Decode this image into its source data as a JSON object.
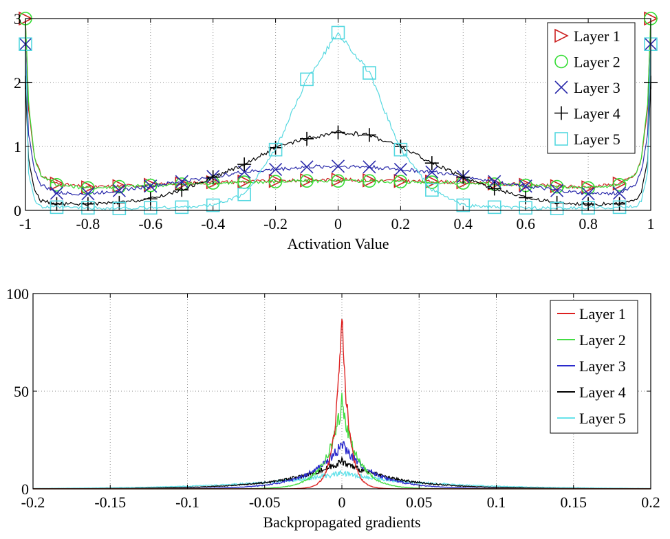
{
  "chart_data": [
    {
      "type": "line",
      "title": "",
      "xlabel": "Activation Value",
      "ylabel": "",
      "xlim": [
        -1,
        1
      ],
      "ylim": [
        0,
        3
      ],
      "grid": true,
      "legend_position": "top-right",
      "x_ticks": [
        -1,
        -0.8,
        -0.6,
        -0.4,
        -0.2,
        0,
        0.2,
        0.4,
        0.6,
        0.8,
        1
      ],
      "x_tick_labels": [
        "-1",
        "-0.8",
        "-0.6",
        "-0.4",
        "-0.2",
        "0",
        "0.2",
        "0.4",
        "0.6",
        "0.8",
        "1"
      ],
      "y_ticks": [
        0,
        1,
        2,
        3
      ],
      "y_tick_labels": [
        "0",
        "1",
        "2",
        "3"
      ],
      "x": [
        -1.0,
        -0.99,
        -0.97,
        -0.95,
        -0.9,
        -0.8,
        -0.7,
        -0.6,
        -0.5,
        -0.4,
        -0.3,
        -0.2,
        -0.1,
        0.0,
        0.1,
        0.2,
        0.3,
        0.4,
        0.5,
        0.6,
        0.7,
        0.8,
        0.9,
        0.95,
        0.97,
        0.99,
        1.0
      ],
      "series": [
        {
          "name": "Layer 1",
          "color": "#cc2020",
          "marker": "triangle-right",
          "values": [
            3.0,
            1.6,
            0.8,
            0.55,
            0.42,
            0.36,
            0.38,
            0.4,
            0.42,
            0.44,
            0.45,
            0.46,
            0.47,
            0.48,
            0.47,
            0.46,
            0.45,
            0.44,
            0.42,
            0.4,
            0.38,
            0.36,
            0.42,
            0.55,
            0.8,
            1.6,
            3.0
          ]
        },
        {
          "name": "Layer 2",
          "color": "#33dd33",
          "marker": "circle",
          "values": [
            3.0,
            1.7,
            0.8,
            0.55,
            0.4,
            0.35,
            0.37,
            0.39,
            0.41,
            0.43,
            0.44,
            0.45,
            0.46,
            0.46,
            0.46,
            0.45,
            0.44,
            0.43,
            0.41,
            0.39,
            0.37,
            0.35,
            0.4,
            0.55,
            0.8,
            1.7,
            3.0
          ]
        },
        {
          "name": "Layer 3",
          "color": "#2a2aaa",
          "marker": "x",
          "values": [
            2.6,
            1.2,
            0.6,
            0.4,
            0.27,
            0.26,
            0.31,
            0.38,
            0.45,
            0.53,
            0.6,
            0.64,
            0.68,
            0.69,
            0.68,
            0.64,
            0.6,
            0.53,
            0.45,
            0.38,
            0.31,
            0.26,
            0.27,
            0.4,
            0.6,
            1.2,
            2.6
          ]
        },
        {
          "name": "Layer 4",
          "color": "#000000",
          "marker": "plus",
          "values": [
            2.0,
            0.8,
            0.3,
            0.15,
            0.1,
            0.1,
            0.12,
            0.18,
            0.32,
            0.52,
            0.72,
            0.98,
            1.12,
            1.22,
            1.18,
            1.0,
            0.74,
            0.52,
            0.34,
            0.2,
            0.12,
            0.1,
            0.1,
            0.15,
            0.3,
            0.8,
            2.0
          ]
        },
        {
          "name": "Layer 5",
          "color": "#55d8e0",
          "marker": "square",
          "values": [
            2.6,
            0.6,
            0.15,
            0.05,
            0.05,
            0.04,
            0.03,
            0.04,
            0.05,
            0.08,
            0.25,
            0.95,
            2.05,
            2.78,
            2.15,
            0.95,
            0.32,
            0.08,
            0.05,
            0.04,
            0.03,
            0.04,
            0.05,
            0.05,
            0.15,
            0.6,
            2.6
          ]
        }
      ]
    },
    {
      "type": "line",
      "title": "",
      "xlabel": "Backpropagated gradients",
      "ylabel": "",
      "xlim": [
        -0.2,
        0.2
      ],
      "ylim": [
        0,
        100
      ],
      "grid": true,
      "legend_position": "top-right",
      "x_ticks": [
        -0.2,
        -0.15,
        -0.1,
        -0.05,
        0,
        0.05,
        0.1,
        0.15,
        0.2
      ],
      "x_tick_labels": [
        "-0.2",
        "-0.15",
        "-0.1",
        "-0.05",
        "0",
        "0.05",
        "0.1",
        "0.15",
        "0.2"
      ],
      "y_ticks": [
        0,
        50,
        100
      ],
      "y_tick_labels": [
        "0",
        "50",
        "100"
      ],
      "series": [
        {
          "name": "Layer 1",
          "color": "#dd2020",
          "peak": 87,
          "width": 0.0045,
          "noise": 0.1
        },
        {
          "name": "Layer 2",
          "color": "#44dd44",
          "peak": 44,
          "width": 0.01,
          "noise": 0.12
        },
        {
          "name": "Layer 3",
          "color": "#2a2acc",
          "peak": 23,
          "width": 0.02,
          "noise": 0.14
        },
        {
          "name": "Layer 4",
          "color": "#000000",
          "peak": 14,
          "width": 0.034,
          "noise": 0.14
        },
        {
          "name": "Layer 5",
          "color": "#66e2ea",
          "peak": 8,
          "width": 0.055,
          "noise": 0.18
        }
      ]
    }
  ]
}
